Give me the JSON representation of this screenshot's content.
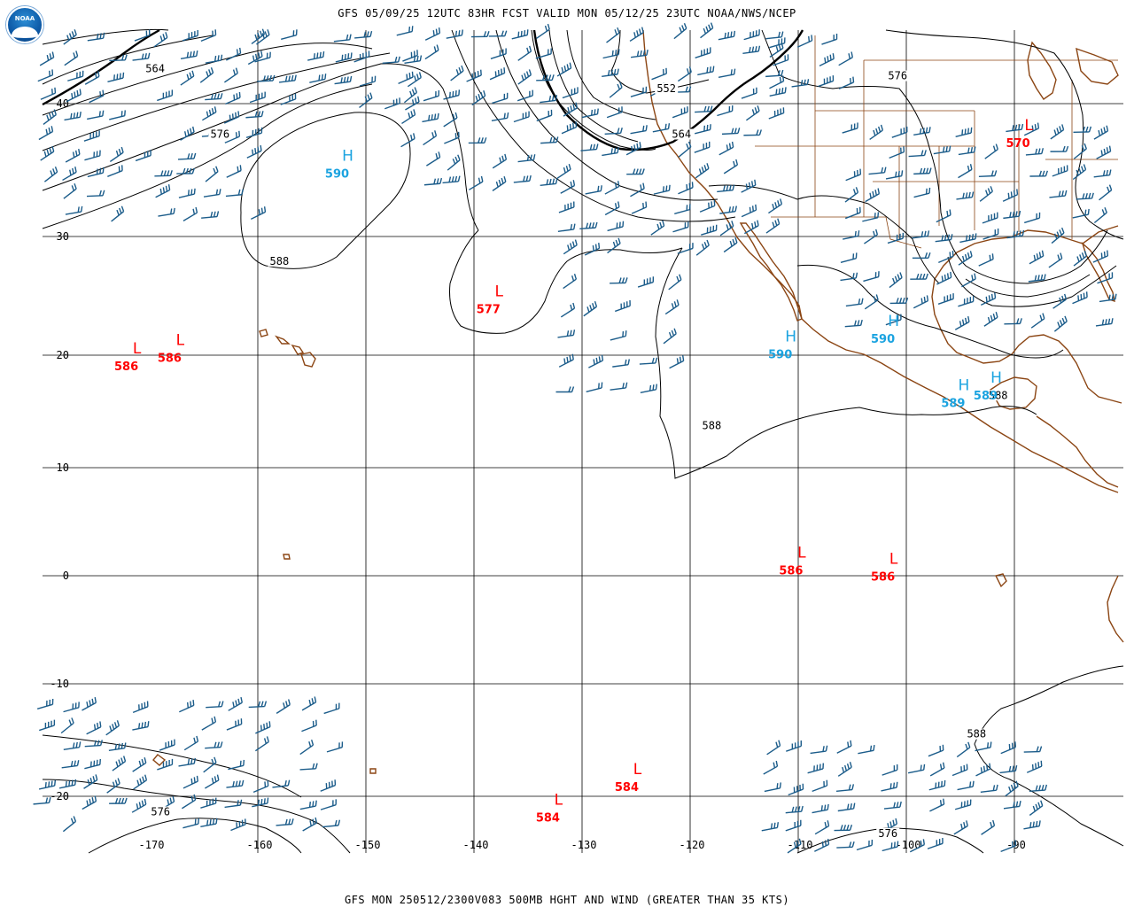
{
  "header": {
    "title": "GFS 05/09/25 12UTC 83HR FCST VALID MON 05/12/25 23UTC NOAA/NWS/NCEP",
    "logo_text": "NOAA"
  },
  "footer": {
    "title": "GFS MON 250512/2300V083 500MB HGHT AND WIND (GREATER THAN 35 KTS)"
  },
  "colors": {
    "grid": "#000000",
    "contour": "#000000",
    "coast": "#8b4513",
    "wind": "#1b5c8a",
    "high": "#1ba3e0",
    "low": "#ff0000"
  },
  "map": {
    "lon_labels": [
      "-170",
      "-160",
      "-150",
      "-140",
      "-130",
      "-120",
      "-110",
      "-100",
      "-90"
    ],
    "lat_labels": [
      "40",
      "30",
      "20",
      "10",
      "0",
      "-10",
      "-20"
    ],
    "pressure_centers": [
      {
        "type": "H",
        "value": "590",
        "lon": -152.5,
        "lat": 35.3
      },
      {
        "type": "L",
        "value": "577",
        "lon": -138.5,
        "lat": 24.5
      },
      {
        "type": "L",
        "value": "586",
        "lon": -172.0,
        "lat": 19.7
      },
      {
        "type": "L",
        "value": "586",
        "lon": -168.0,
        "lat": 20.4
      },
      {
        "type": "H",
        "value": "590",
        "lon": -111.5,
        "lat": 20.7
      },
      {
        "type": "H",
        "value": "590",
        "lon": -102.0,
        "lat": 22.0
      },
      {
        "type": "H",
        "value": "589",
        "lon": -95.5,
        "lat": 16.4
      },
      {
        "type": "H",
        "value": "589",
        "lon": -92.5,
        "lat": 17.1
      },
      {
        "type": "L",
        "value": "570",
        "lon": -89.5,
        "lat": 37.6
      },
      {
        "type": "L",
        "value": "586",
        "lon": -110.5,
        "lat": 1.2
      },
      {
        "type": "L",
        "value": "586",
        "lon": -102.0,
        "lat": 0.6
      },
      {
        "type": "L",
        "value": "584",
        "lon": -125.7,
        "lat": -18.5
      },
      {
        "type": "L",
        "value": "584",
        "lon": -133.0,
        "lat": -21.2
      }
    ],
    "contour_labels": [
      {
        "text": "564",
        "lon": -169.5,
        "lat": 42.3
      },
      {
        "text": "576",
        "lon": -163.5,
        "lat": 37.5
      },
      {
        "text": "588",
        "lon": -158.0,
        "lat": 27.7
      },
      {
        "text": "552",
        "lon": -122.2,
        "lat": 40.9
      },
      {
        "text": "564",
        "lon": -120.8,
        "lat": 37.5
      },
      {
        "text": "576",
        "lon": -100.8,
        "lat": 41.8
      },
      {
        "text": "588",
        "lon": -118.0,
        "lat": 13.5
      },
      {
        "text": "588",
        "lon": -91.5,
        "lat": 16.2
      },
      {
        "text": "588",
        "lon": -93.5,
        "lat": -14.7
      },
      {
        "text": "576",
        "lon": -169.0,
        "lat": -21.6
      },
      {
        "text": "576",
        "lon": -101.7,
        "lat": -23.5
      }
    ]
  }
}
